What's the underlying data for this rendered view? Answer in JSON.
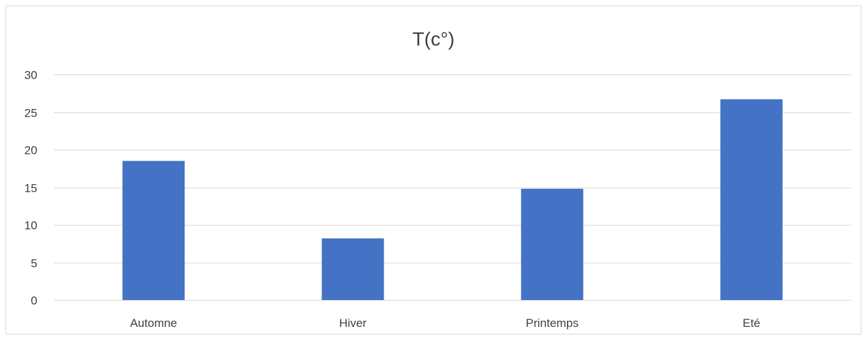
{
  "chart_data": {
    "type": "bar",
    "title": "T(c°)",
    "categories": [
      "Automne",
      "Hiver",
      "Printemps",
      "Eté"
    ],
    "values": [
      18.5,
      8.2,
      14.8,
      26.7
    ],
    "xlabel": "",
    "ylabel": "",
    "ylim": [
      0,
      30
    ],
    "yticks": [
      0,
      5,
      10,
      15,
      20,
      25,
      30
    ],
    "grid": true,
    "legend": "none",
    "bar_color": "#4472C4"
  }
}
